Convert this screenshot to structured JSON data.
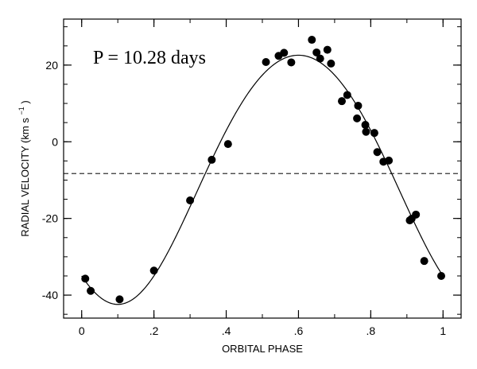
{
  "chart_data": {
    "type": "scatter",
    "annotation": "P = 10.28 days",
    "xlabel": "ORBITAL PHASE",
    "ylabel_main": "RADIAL  VELOCITY  (km  s",
    "ylabel_sup": "−1",
    "ylabel_close": ")",
    "xlim": [
      -0.05,
      1.05
    ],
    "ylim": [
      -46,
      32
    ],
    "xticks": [
      {
        "value": 0,
        "label": "0"
      },
      {
        "value": 0.2,
        "label": ".2"
      },
      {
        "value": 0.4,
        "label": ".4"
      },
      {
        "value": 0.6,
        "label": ".6"
      },
      {
        "value": 0.8,
        "label": ".8"
      },
      {
        "value": 1.0,
        "label": "1"
      }
    ],
    "yticks": [
      {
        "value": 20,
        "label": "20"
      },
      {
        "value": 0,
        "label": "0"
      },
      {
        "value": -20,
        "label": "-20"
      },
      {
        "value": -40,
        "label": "-40"
      }
    ],
    "minor_x_step": 0.1,
    "minor_y_step": 5,
    "systemic_velocity": -8.3,
    "orbit_fit": {
      "gamma": -8.3,
      "K": 32.5,
      "e": 0.05,
      "omega_deg": 180,
      "t0_phase": 0.1
    },
    "points": [
      {
        "x": 0.01,
        "y": -35.7
      },
      {
        "x": 0.025,
        "y": -38.9
      },
      {
        "x": 0.105,
        "y": -41.1
      },
      {
        "x": 0.2,
        "y": -33.6
      },
      {
        "x": 0.3,
        "y": -15.3
      },
      {
        "x": 0.36,
        "y": -4.7
      },
      {
        "x": 0.405,
        "y": -0.6
      },
      {
        "x": 0.51,
        "y": 20.8
      },
      {
        "x": 0.545,
        "y": 22.4
      },
      {
        "x": 0.56,
        "y": 23.2
      },
      {
        "x": 0.58,
        "y": 20.7
      },
      {
        "x": 0.637,
        "y": 26.6
      },
      {
        "x": 0.65,
        "y": 23.3
      },
      {
        "x": 0.66,
        "y": 21.7
      },
      {
        "x": 0.68,
        "y": 24.0
      },
      {
        "x": 0.69,
        "y": 20.4
      },
      {
        "x": 0.72,
        "y": 10.6
      },
      {
        "x": 0.735,
        "y": 12.2
      },
      {
        "x": 0.762,
        "y": 6.1
      },
      {
        "x": 0.765,
        "y": 9.4
      },
      {
        "x": 0.785,
        "y": 4.4
      },
      {
        "x": 0.787,
        "y": 2.6
      },
      {
        "x": 0.81,
        "y": 2.3
      },
      {
        "x": 0.818,
        "y": -2.7
      },
      {
        "x": 0.835,
        "y": -5.2
      },
      {
        "x": 0.85,
        "y": -4.9
      },
      {
        "x": 0.908,
        "y": -20.5
      },
      {
        "x": 0.913,
        "y": -20.1
      },
      {
        "x": 0.925,
        "y": -19.0
      },
      {
        "x": 0.948,
        "y": -31.1
      },
      {
        "x": 0.995,
        "y": -35.0
      }
    ]
  }
}
